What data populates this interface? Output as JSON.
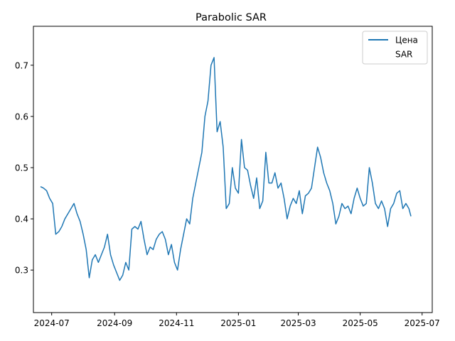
{
  "chart_data": {
    "type": "line",
    "title": "Parabolic SAR",
    "xlabel": "",
    "ylabel": "",
    "xlim": [
      "2024-06-13",
      "2025-07-11"
    ],
    "ylim": [
      0.217,
      0.776
    ],
    "grid": false,
    "legend_position": "upper-right",
    "x_ticks": [
      "2024-07-01",
      "2024-09-01",
      "2024-11-01",
      "2025-01-01",
      "2025-03-01",
      "2025-05-01",
      "2025-07-01"
    ],
    "x_tick_labels": [
      "2024-07",
      "2024-09",
      "2024-11",
      "2025-01",
      "2025-03",
      "2025-05",
      "2025-07"
    ],
    "y_ticks": [
      0.3,
      0.4,
      0.5,
      0.6,
      0.7
    ],
    "y_tick_labels": [
      "0.3",
      "0.4",
      "0.5",
      "0.6",
      "0.7"
    ],
    "series": [
      {
        "name": "Цена",
        "color": "#1f77b4",
        "points": [
          [
            "2024-06-20",
            0.463
          ],
          [
            "2024-06-23",
            0.46
          ],
          [
            "2024-06-26",
            0.455
          ],
          [
            "2024-06-29",
            0.44
          ],
          [
            "2024-07-02",
            0.43
          ],
          [
            "2024-07-05",
            0.37
          ],
          [
            "2024-07-08",
            0.375
          ],
          [
            "2024-07-11",
            0.385
          ],
          [
            "2024-07-14",
            0.4
          ],
          [
            "2024-07-17",
            0.41
          ],
          [
            "2024-07-20",
            0.42
          ],
          [
            "2024-07-23",
            0.43
          ],
          [
            "2024-07-26",
            0.41
          ],
          [
            "2024-07-29",
            0.395
          ],
          [
            "2024-08-01",
            0.37
          ],
          [
            "2024-08-04",
            0.34
          ],
          [
            "2024-08-07",
            0.285
          ],
          [
            "2024-08-10",
            0.32
          ],
          [
            "2024-08-13",
            0.33
          ],
          [
            "2024-08-16",
            0.315
          ],
          [
            "2024-08-19",
            0.33
          ],
          [
            "2024-08-22",
            0.345
          ],
          [
            "2024-08-25",
            0.37
          ],
          [
            "2024-08-28",
            0.33
          ],
          [
            "2024-08-31",
            0.31
          ],
          [
            "2024-09-03",
            0.295
          ],
          [
            "2024-09-06",
            0.28
          ],
          [
            "2024-09-09",
            0.29
          ],
          [
            "2024-09-12",
            0.315
          ],
          [
            "2024-09-15",
            0.3
          ],
          [
            "2024-09-18",
            0.38
          ],
          [
            "2024-09-21",
            0.385
          ],
          [
            "2024-09-24",
            0.38
          ],
          [
            "2024-09-27",
            0.395
          ],
          [
            "2024-09-30",
            0.36
          ],
          [
            "2024-10-03",
            0.33
          ],
          [
            "2024-10-06",
            0.345
          ],
          [
            "2024-10-09",
            0.34
          ],
          [
            "2024-10-12",
            0.36
          ],
          [
            "2024-10-15",
            0.37
          ],
          [
            "2024-10-18",
            0.375
          ],
          [
            "2024-10-21",
            0.36
          ],
          [
            "2024-10-24",
            0.33
          ],
          [
            "2024-10-27",
            0.35
          ],
          [
            "2024-10-30",
            0.315
          ],
          [
            "2024-11-02",
            0.3
          ],
          [
            "2024-11-05",
            0.34
          ],
          [
            "2024-11-08",
            0.37
          ],
          [
            "2024-11-11",
            0.4
          ],
          [
            "2024-11-14",
            0.39
          ],
          [
            "2024-11-17",
            0.44
          ],
          [
            "2024-11-20",
            0.47
          ],
          [
            "2024-11-23",
            0.5
          ],
          [
            "2024-11-26",
            0.53
          ],
          [
            "2024-11-29",
            0.6
          ],
          [
            "2024-12-02",
            0.63
          ],
          [
            "2024-12-05",
            0.7
          ],
          [
            "2024-12-08",
            0.715
          ],
          [
            "2024-12-11",
            0.57
          ],
          [
            "2024-12-14",
            0.59
          ],
          [
            "2024-12-17",
            0.54
          ],
          [
            "2024-12-20",
            0.42
          ],
          [
            "2024-12-23",
            0.43
          ],
          [
            "2024-12-26",
            0.5
          ],
          [
            "2024-12-29",
            0.46
          ],
          [
            "2025-01-01",
            0.45
          ],
          [
            "2025-01-04",
            0.555
          ],
          [
            "2025-01-07",
            0.5
          ],
          [
            "2025-01-10",
            0.495
          ],
          [
            "2025-01-13",
            0.465
          ],
          [
            "2025-01-16",
            0.44
          ],
          [
            "2025-01-19",
            0.48
          ],
          [
            "2025-01-22",
            0.42
          ],
          [
            "2025-01-25",
            0.435
          ],
          [
            "2025-01-28",
            0.53
          ],
          [
            "2025-01-31",
            0.47
          ],
          [
            "2025-02-03",
            0.47
          ],
          [
            "2025-02-06",
            0.49
          ],
          [
            "2025-02-09",
            0.46
          ],
          [
            "2025-02-12",
            0.47
          ],
          [
            "2025-02-15",
            0.44
          ],
          [
            "2025-02-18",
            0.4
          ],
          [
            "2025-02-21",
            0.425
          ],
          [
            "2025-02-24",
            0.44
          ],
          [
            "2025-02-27",
            0.43
          ],
          [
            "2025-03-02",
            0.455
          ],
          [
            "2025-03-05",
            0.41
          ],
          [
            "2025-03-08",
            0.445
          ],
          [
            "2025-03-11",
            0.45
          ],
          [
            "2025-03-14",
            0.46
          ],
          [
            "2025-03-17",
            0.5
          ],
          [
            "2025-03-20",
            0.54
          ],
          [
            "2025-03-23",
            0.52
          ],
          [
            "2025-03-26",
            0.49
          ],
          [
            "2025-03-29",
            0.47
          ],
          [
            "2025-04-01",
            0.455
          ],
          [
            "2025-04-04",
            0.43
          ],
          [
            "2025-04-07",
            0.39
          ],
          [
            "2025-04-10",
            0.405
          ],
          [
            "2025-04-13",
            0.43
          ],
          [
            "2025-04-16",
            0.42
          ],
          [
            "2025-04-19",
            0.425
          ],
          [
            "2025-04-22",
            0.41
          ],
          [
            "2025-04-25",
            0.44
          ],
          [
            "2025-04-28",
            0.46
          ],
          [
            "2025-05-01",
            0.44
          ],
          [
            "2025-05-04",
            0.425
          ],
          [
            "2025-05-07",
            0.43
          ],
          [
            "2025-05-10",
            0.5
          ],
          [
            "2025-05-13",
            0.47
          ],
          [
            "2025-05-16",
            0.43
          ],
          [
            "2025-05-19",
            0.42
          ],
          [
            "2025-05-22",
            0.435
          ],
          [
            "2025-05-25",
            0.42
          ],
          [
            "2025-05-28",
            0.385
          ],
          [
            "2025-05-31",
            0.42
          ],
          [
            "2025-06-03",
            0.43
          ],
          [
            "2025-06-06",
            0.45
          ],
          [
            "2025-06-09",
            0.455
          ],
          [
            "2025-06-12",
            0.42
          ],
          [
            "2025-06-15",
            0.43
          ],
          [
            "2025-06-18",
            0.42
          ],
          [
            "2025-06-20",
            0.405
          ]
        ]
      },
      {
        "name": "SAR",
        "color": "#ffffff",
        "points": []
      }
    ]
  }
}
